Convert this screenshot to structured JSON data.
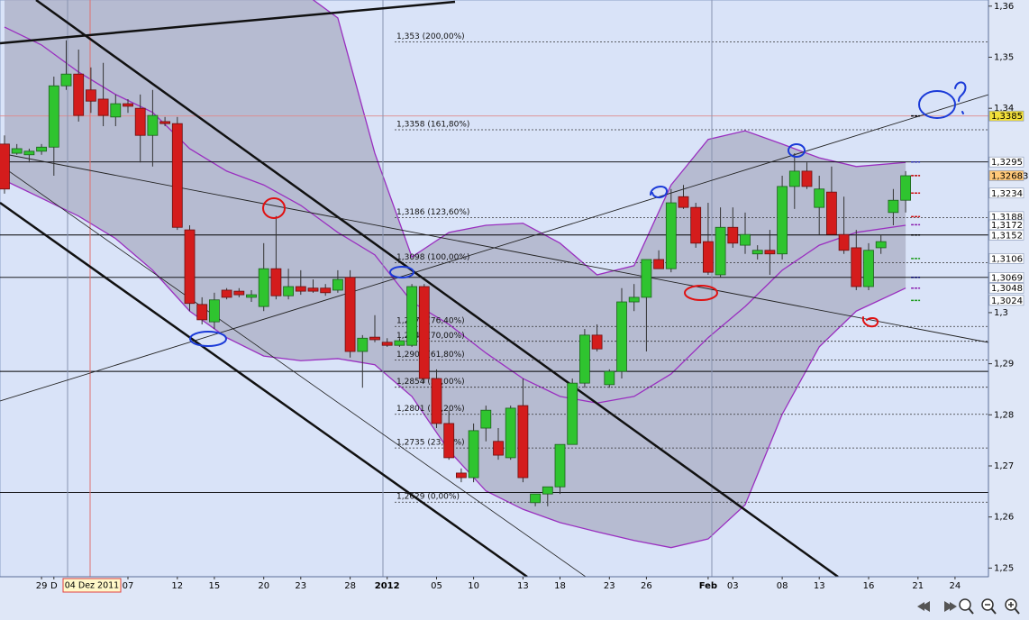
{
  "chart_data": {
    "type": "candlestick",
    "categories": [
      null,
      null,
      null,
      "29",
      "D",
      null,
      null,
      null,
      null,
      null,
      "07",
      null,
      null,
      null,
      "12",
      null,
      null,
      "15",
      null,
      null,
      null,
      "20",
      null,
      null,
      "23",
      null,
      null,
      null,
      "28",
      null,
      null,
      "2012",
      null,
      null,
      null,
      "05",
      null,
      null,
      "10",
      null,
      null,
      null,
      "13",
      null,
      null,
      "18",
      null,
      null,
      null,
      "23",
      null,
      null,
      "26",
      null,
      null,
      null,
      null,
      "Feb",
      null,
      "03",
      null,
      null,
      null,
      "08",
      null,
      null,
      "13",
      null,
      null,
      null,
      "16",
      null,
      null,
      null,
      "21",
      null,
      null,
      "24"
    ],
    "open": [
      1.333,
      1.3312,
      1.3309,
      1.3316,
      1.3324,
      1.3444,
      1.3467,
      1.3436,
      1.3418,
      1.3383,
      1.3409,
      1.34,
      1.3347,
      1.3374,
      1.337,
      1.3162,
      1.3016,
      1.2982,
      1.3044,
      1.3042,
      1.303,
      1.3012,
      1.3086,
      1.3033,
      1.3051,
      1.3048,
      1.3048,
      1.3044,
      1.3069,
      1.2924,
      1.2952,
      1.2942,
      1.2936,
      1.2936,
      1.3051,
      1.2871,
      1.2783,
      1.2686,
      1.2677,
      1.2774,
      1.2748,
      1.2716,
      1.2818,
      1.2628,
      1.2645,
      1.2659,
      1.2742,
      1.2862,
      1.2956,
      1.2859,
      1.2885,
      1.3021,
      1.303,
      1.3104,
      1.3086,
      1.3227,
      1.3206,
      1.3139,
      1.3074,
      1.3167,
      1.3132,
      1.3115,
      1.3122,
      1.3115,
      1.3247,
      1.3277,
      1.3206,
      1.3236,
      1.3153,
      1.3127,
      1.3051,
      1.3127,
      1.3196,
      1.322,
      null,
      null,
      null,
      null
    ],
    "high": [
      1.3347,
      1.333,
      1.3321,
      1.333,
      1.3462,
      1.3533,
      1.3515,
      1.348,
      1.3489,
      1.3427,
      1.3418,
      1.3427,
      1.3436,
      1.3383,
      1.3383,
      1.3171,
      1.303,
      1.3039,
      1.3048,
      1.3048,
      1.3044,
      1.3136,
      1.3189,
      1.3086,
      1.3083,
      1.3065,
      1.3056,
      1.3083,
      1.3083,
      1.2956,
      1.2995,
      1.295,
      1.295,
      1.3056,
      1.3056,
      1.2889,
      1.2809,
      1.2695,
      1.2783,
      1.2818,
      1.2774,
      1.2818,
      1.2871,
      1.2645,
      1.2659,
      1.2742,
      1.2871,
      1.2968,
      1.2977,
      1.2889,
      1.3048,
      1.3056,
      1.3104,
      1.3122,
      1.3242,
      1.325,
      1.3215,
      1.3215,
      1.3206,
      1.3206,
      1.3196,
      1.3132,
      1.3162,
      1.3268,
      1.3312,
      1.3294,
      1.3268,
      1.3286,
      1.3227,
      1.3162,
      1.3136,
      1.3153,
      1.3242,
      1.3277,
      null,
      null,
      null,
      null
    ],
    "low": [
      1.3233,
      1.3309,
      1.3294,
      1.3309,
      1.3268,
      1.3436,
      1.3374,
      1.3391,
      1.3365,
      1.3365,
      1.3391,
      1.3294,
      1.3286,
      1.3365,
      1.3162,
      1.3003,
      1.2977,
      1.2968,
      1.3026,
      1.303,
      1.3021,
      1.3003,
      1.3026,
      1.3026,
      1.3035,
      1.3039,
      1.3033,
      1.3039,
      1.2912,
      1.2853,
      1.2942,
      1.2933,
      1.2933,
      1.2933,
      1.2862,
      1.2774,
      1.2712,
      1.2668,
      1.2668,
      1.2748,
      1.2712,
      1.2712,
      1.2668,
      1.2621,
      1.2621,
      1.2645,
      1.2742,
      1.2853,
      1.2924,
      1.2853,
      1.2871,
      1.3003,
      1.2924,
      1.3086,
      1.3079,
      1.3203,
      1.3127,
      1.3074,
      1.3069,
      1.3127,
      1.3115,
      1.3104,
      1.3074,
      1.3104,
      1.3203,
      1.3242,
      1.3153,
      1.3153,
      1.3115,
      1.3044,
      1.3044,
      1.3115,
      1.3171,
      1.3196,
      null,
      null,
      null,
      null
    ],
    "close": [
      1.3242,
      1.3321,
      1.3316,
      1.3324,
      1.3444,
      1.3467,
      1.3386,
      1.3414,
      1.3386,
      1.3409,
      1.3404,
      1.3347,
      1.3386,
      1.337,
      1.3167,
      1.3018,
      1.2986,
      1.3025,
      1.303,
      1.3035,
      1.3035,
      1.3086,
      1.3033,
      1.3051,
      1.3042,
      1.3042,
      1.3039,
      1.3065,
      1.2924,
      1.295,
      1.2947,
      1.2936,
      1.2945,
      1.3051,
      1.2871,
      1.2783,
      1.2716,
      1.2677,
      1.2769,
      1.2809,
      1.2721,
      1.2813,
      1.2677,
      1.2645,
      1.2659,
      1.2742,
      1.2862,
      1.2956,
      1.2929,
      1.2885,
      1.3021,
      1.303,
      1.3104,
      1.3086,
      1.3215,
      1.3206,
      1.3136,
      1.3079,
      1.3167,
      1.3136,
      1.3153,
      1.3122,
      1.3115,
      1.3247,
      1.3277,
      1.3247,
      1.3242,
      1.3153,
      1.3122,
      1.3051,
      1.3122,
      1.3139,
      1.322,
      1.3268,
      null,
      null,
      null,
      null
    ],
    "up_color": "#2fc42f",
    "down_color": "#d41c1c",
    "bands": {
      "x": [
        0,
        3,
        6,
        9,
        12,
        15,
        18,
        21,
        24,
        27,
        30,
        33,
        36,
        39,
        42,
        45,
        48,
        51,
        54,
        57,
        60,
        63,
        66,
        69,
        73
      ],
      "upper": [
        1.3718,
        1.3718,
        1.3709,
        1.37,
        1.3691,
        1.3683,
        1.3674,
        1.3665,
        1.363,
        1.3577,
        1.3312,
        1.3109,
        1.3157,
        1.3171,
        1.3175,
        1.3136,
        1.3074,
        1.3092,
        1.325,
        1.3339,
        1.3356,
        1.333,
        1.3303,
        1.3286,
        1.3294
      ],
      "middle": [
        1.3559,
        1.3524,
        1.3471,
        1.3427,
        1.3392,
        1.3321,
        1.3277,
        1.325,
        1.321,
        1.3157,
        1.3113,
        1.3021,
        1.2977,
        1.2921,
        1.2871,
        1.2836,
        1.2823,
        1.2836,
        1.288,
        1.2951,
        1.3012,
        1.3083,
        1.3132,
        1.3157,
        1.3171
      ],
      "lower": [
        1.3259,
        1.3224,
        1.3189,
        1.3145,
        1.3083,
        1.3003,
        1.2951,
        1.2915,
        1.2906,
        1.291,
        1.2898,
        1.2836,
        1.273,
        1.2651,
        1.2615,
        1.2589,
        1.2571,
        1.2554,
        1.254,
        1.2557,
        1.2624,
        1.2801,
        1.2933,
        1.3003,
        1.3048
      ],
      "color": "#9a2fc0",
      "fill": "#a9adc4"
    },
    "ylim": [
      1.2483,
      1.3612
    ],
    "yticks": [
      {
        "value": 1.36,
        "label": "1,36"
      },
      {
        "value": 1.35,
        "label": "1,35"
      },
      {
        "value": 1.34,
        "label": "1,34"
      },
      {
        "value": 1.3,
        "label": "1,3"
      },
      {
        "value": 1.29,
        "label": "1,29"
      },
      {
        "value": 1.28,
        "label": "1,28"
      },
      {
        "value": 1.27,
        "label": "1,27"
      },
      {
        "value": 1.26,
        "label": "1,26"
      },
      {
        "value": 1.25,
        "label": "1,25"
      }
    ],
    "fib_levels": [
      {
        "value": 1.353,
        "label": "1,353 (200,00%)"
      },
      {
        "value": 1.3358,
        "label": "1,3358 (161,80%)"
      },
      {
        "value": 1.3186,
        "label": "1,3186 (123,60%)"
      },
      {
        "value": 1.3098,
        "label": "1,3098 (100,00%)"
      },
      {
        "value": 1.2973,
        "label": "1,2973 (76,40%)"
      },
      {
        "value": 1.2944,
        "label": "1,2944 (70,00%)"
      },
      {
        "value": 1.2907,
        "label": "1,2907 (61,80%)"
      },
      {
        "value": 1.2854,
        "label": "1,2854 (50,00%)"
      },
      {
        "value": 1.2801,
        "label": "1,2801 (38,20%)"
      },
      {
        "value": 1.2735,
        "label": "1,2735 (23,60%)"
      },
      {
        "value": 1.2629,
        "label": "1,2629 (0,00%)"
      }
    ],
    "hlines": [
      {
        "value": 1.3385,
        "color": "#e08a8a"
      },
      {
        "value": 1.3295,
        "color": "#000000"
      },
      {
        "value": 1.3152,
        "color": "#000000"
      },
      {
        "value": 1.3069,
        "color": "#000000"
      },
      {
        "value": 1.2885,
        "color": "#000000"
      },
      {
        "value": 1.2648,
        "color": "#000000"
      }
    ],
    "price_tags": [
      {
        "value": 1.3385,
        "label": "1,3385",
        "color": "#000000",
        "bg": "#f3e03a"
      },
      {
        "value": 1.3295,
        "label": "1,3295",
        "color": "#2a2aa8",
        "bg": "#ffffff"
      },
      {
        "value": 1.32683,
        "label": "1,32683",
        "color": "#c00000",
        "bg": "#ffc878"
      },
      {
        "value": 1.3234,
        "label": "1,3234",
        "color": "#d01010",
        "bg": "#ffffff"
      },
      {
        "value": 1.3188,
        "label": "1,3188",
        "color": "#d01010",
        "bg": "#ffffff"
      },
      {
        "value": 1.3172,
        "label": "1,3172",
        "color": "#8a20b0",
        "bg": "#ffffff"
      },
      {
        "value": 1.3152,
        "label": "1,3152",
        "color": "#000000",
        "bg": "#ffffff"
      },
      {
        "value": 1.3106,
        "label": "1,3106",
        "color": "#1a9a1a",
        "bg": "#ffffff"
      },
      {
        "value": 1.3069,
        "label": "1,3069",
        "color": "#000060",
        "bg": "#ffffff"
      },
      {
        "value": 1.3048,
        "label": "1,3048",
        "color": "#8a20b0",
        "bg": "#ffffff"
      },
      {
        "value": 1.3024,
        "label": "1,3024",
        "color": "#1a9a1a",
        "bg": "#ffffff"
      }
    ],
    "cursor_label": "04 Dez 2011"
  }
}
